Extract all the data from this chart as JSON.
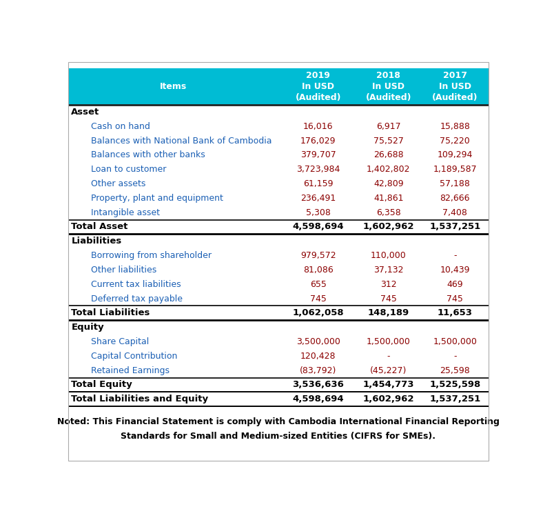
{
  "header_bg": "#00BCD4",
  "header_text_color": "#FFFFFF",
  "header_cols": [
    "2019\nIn USD\n(Audited)",
    "2018\nIn USD\n(Audited)",
    "2017\nIn USD\n(Audited)"
  ],
  "section_color": "#000000",
  "item_label_color": "#1a5fb4",
  "value_color": "#8B0000",
  "bold_row_color": "#000000",
  "note_color": "#000000",
  "rows": [
    {
      "type": "section",
      "label": "Asset",
      "vals": [
        "",
        "",
        ""
      ]
    },
    {
      "type": "item",
      "label": "Cash on hand",
      "vals": [
        "16,016",
        "6,917",
        "15,888"
      ]
    },
    {
      "type": "item",
      "label": "Balances with National Bank of Cambodia",
      "vals": [
        "176,029",
        "75,527",
        "75,220"
      ]
    },
    {
      "type": "item",
      "label": "Balances with other banks",
      "vals": [
        "379,707",
        "26,688",
        "109,294"
      ]
    },
    {
      "type": "item",
      "label": "Loan to customer",
      "vals": [
        "3,723,984",
        "1,402,802",
        "1,189,587"
      ]
    },
    {
      "type": "item",
      "label": "Other assets",
      "vals": [
        "61,159",
        "42,809",
        "57,188"
      ]
    },
    {
      "type": "item",
      "label": "Property, plant and equipment",
      "vals": [
        "236,491",
        "41,861",
        "82,666"
      ]
    },
    {
      "type": "item",
      "label": "Intangible asset",
      "vals": [
        "5,308",
        "6,358",
        "7,408"
      ]
    },
    {
      "type": "total",
      "label": "Total Asset",
      "vals": [
        "4,598,694",
        "1,602,962",
        "1,537,251"
      ]
    },
    {
      "type": "section",
      "label": "Liabilities",
      "vals": [
        "",
        "",
        ""
      ]
    },
    {
      "type": "item",
      "label": "Borrowing from shareholder",
      "vals": [
        "979,572",
        "110,000",
        "-"
      ]
    },
    {
      "type": "item",
      "label": "Other liabilities",
      "vals": [
        "81,086",
        "37,132",
        "10,439"
      ]
    },
    {
      "type": "item",
      "label": "Current tax liabilities",
      "vals": [
        "655",
        "312",
        "469"
      ]
    },
    {
      "type": "item",
      "label": "Deferred tax payable",
      "vals": [
        "745",
        "745",
        "745"
      ]
    },
    {
      "type": "total",
      "label": "Total Liabilities",
      "vals": [
        "1,062,058",
        "148,189",
        "11,653"
      ]
    },
    {
      "type": "section",
      "label": "Equity",
      "vals": [
        "",
        "",
        ""
      ]
    },
    {
      "type": "item",
      "label": "Share Capital",
      "vals": [
        "3,500,000",
        "1,500,000",
        "1,500,000"
      ]
    },
    {
      "type": "item",
      "label": "Capital Contribution",
      "vals": [
        "120,428",
        "-",
        "-"
      ]
    },
    {
      "type": "item",
      "label": "Retained Earnings",
      "vals": [
        "(83,792)",
        "(45,227)",
        "25,598"
      ]
    },
    {
      "type": "total_space",
      "label": "Total Equity",
      "vals": [
        "3,536,636",
        "1,454,773",
        "1,525,598"
      ]
    },
    {
      "type": "total_space",
      "label": "Total Liabilities and Equity",
      "vals": [
        "4,598,694",
        "1,602,962",
        "1,537,251"
      ]
    }
  ],
  "note_line1": "Noted: This Financial Statement is comply with Cambodia International Financial Reporting",
  "note_line2": "Standards for Small and Medium-sized Entities (CIFRS for SMEs).",
  "fig_width": 7.88,
  "fig_height": 7.51
}
